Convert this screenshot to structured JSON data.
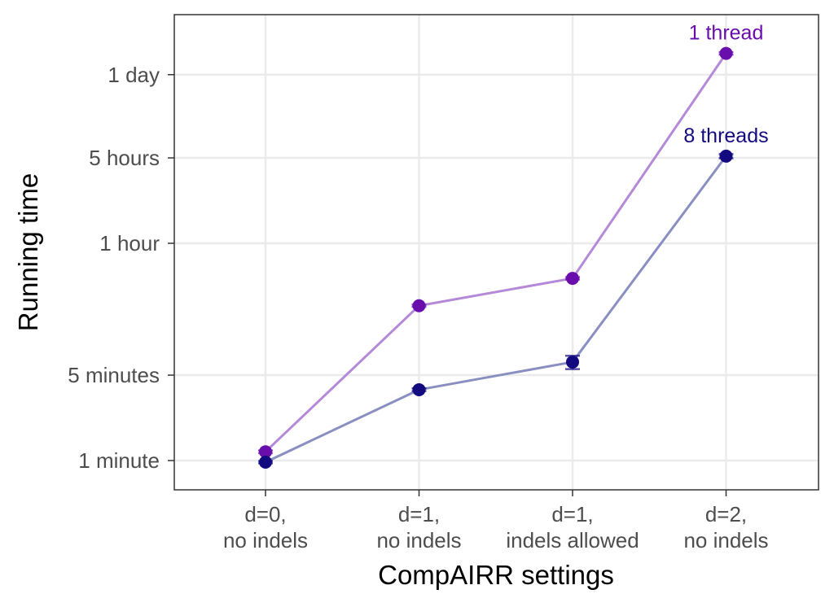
{
  "chart_data": {
    "type": "line",
    "title": "",
    "xlabel": "CompAIRR settings",
    "ylabel": "Running time",
    "y_scale": "log",
    "y_unit": "minutes",
    "grid": true,
    "legend": "none",
    "categories": [
      [
        "d=0,",
        "no indels"
      ],
      [
        "d=1,",
        "no indels"
      ],
      [
        "d=1,",
        "indels allowed"
      ],
      [
        "d=2,",
        "no indels"
      ]
    ],
    "y_ticks": [
      {
        "label": "1 minute",
        "value": 1
      },
      {
        "label": "5 minutes",
        "value": 5
      },
      {
        "label": "1 hour",
        "value": 60
      },
      {
        "label": "5 hours",
        "value": 300
      },
      {
        "label": "1 day",
        "value": 1440
      }
    ],
    "ylim": [
      0.6,
      2700
    ],
    "series": [
      {
        "name": "1 thread",
        "color": "#6a0dad",
        "line_color": "#b48ad8",
        "values": [
          1.18,
          18.5,
          31,
          2150
        ],
        "error_low": [
          1.15,
          18.1,
          30.3,
          2100
        ],
        "error_high": [
          1.21,
          18.9,
          31.7,
          2200
        ]
      },
      {
        "name": "8 threads",
        "color": "#140a80",
        "line_color": "#8a8fc2",
        "values": [
          0.97,
          3.8,
          6.4,
          310
        ],
        "error_low": [
          0.95,
          3.7,
          5.6,
          298
        ],
        "error_high": [
          0.99,
          3.9,
          7.2,
          322
        ]
      }
    ]
  }
}
